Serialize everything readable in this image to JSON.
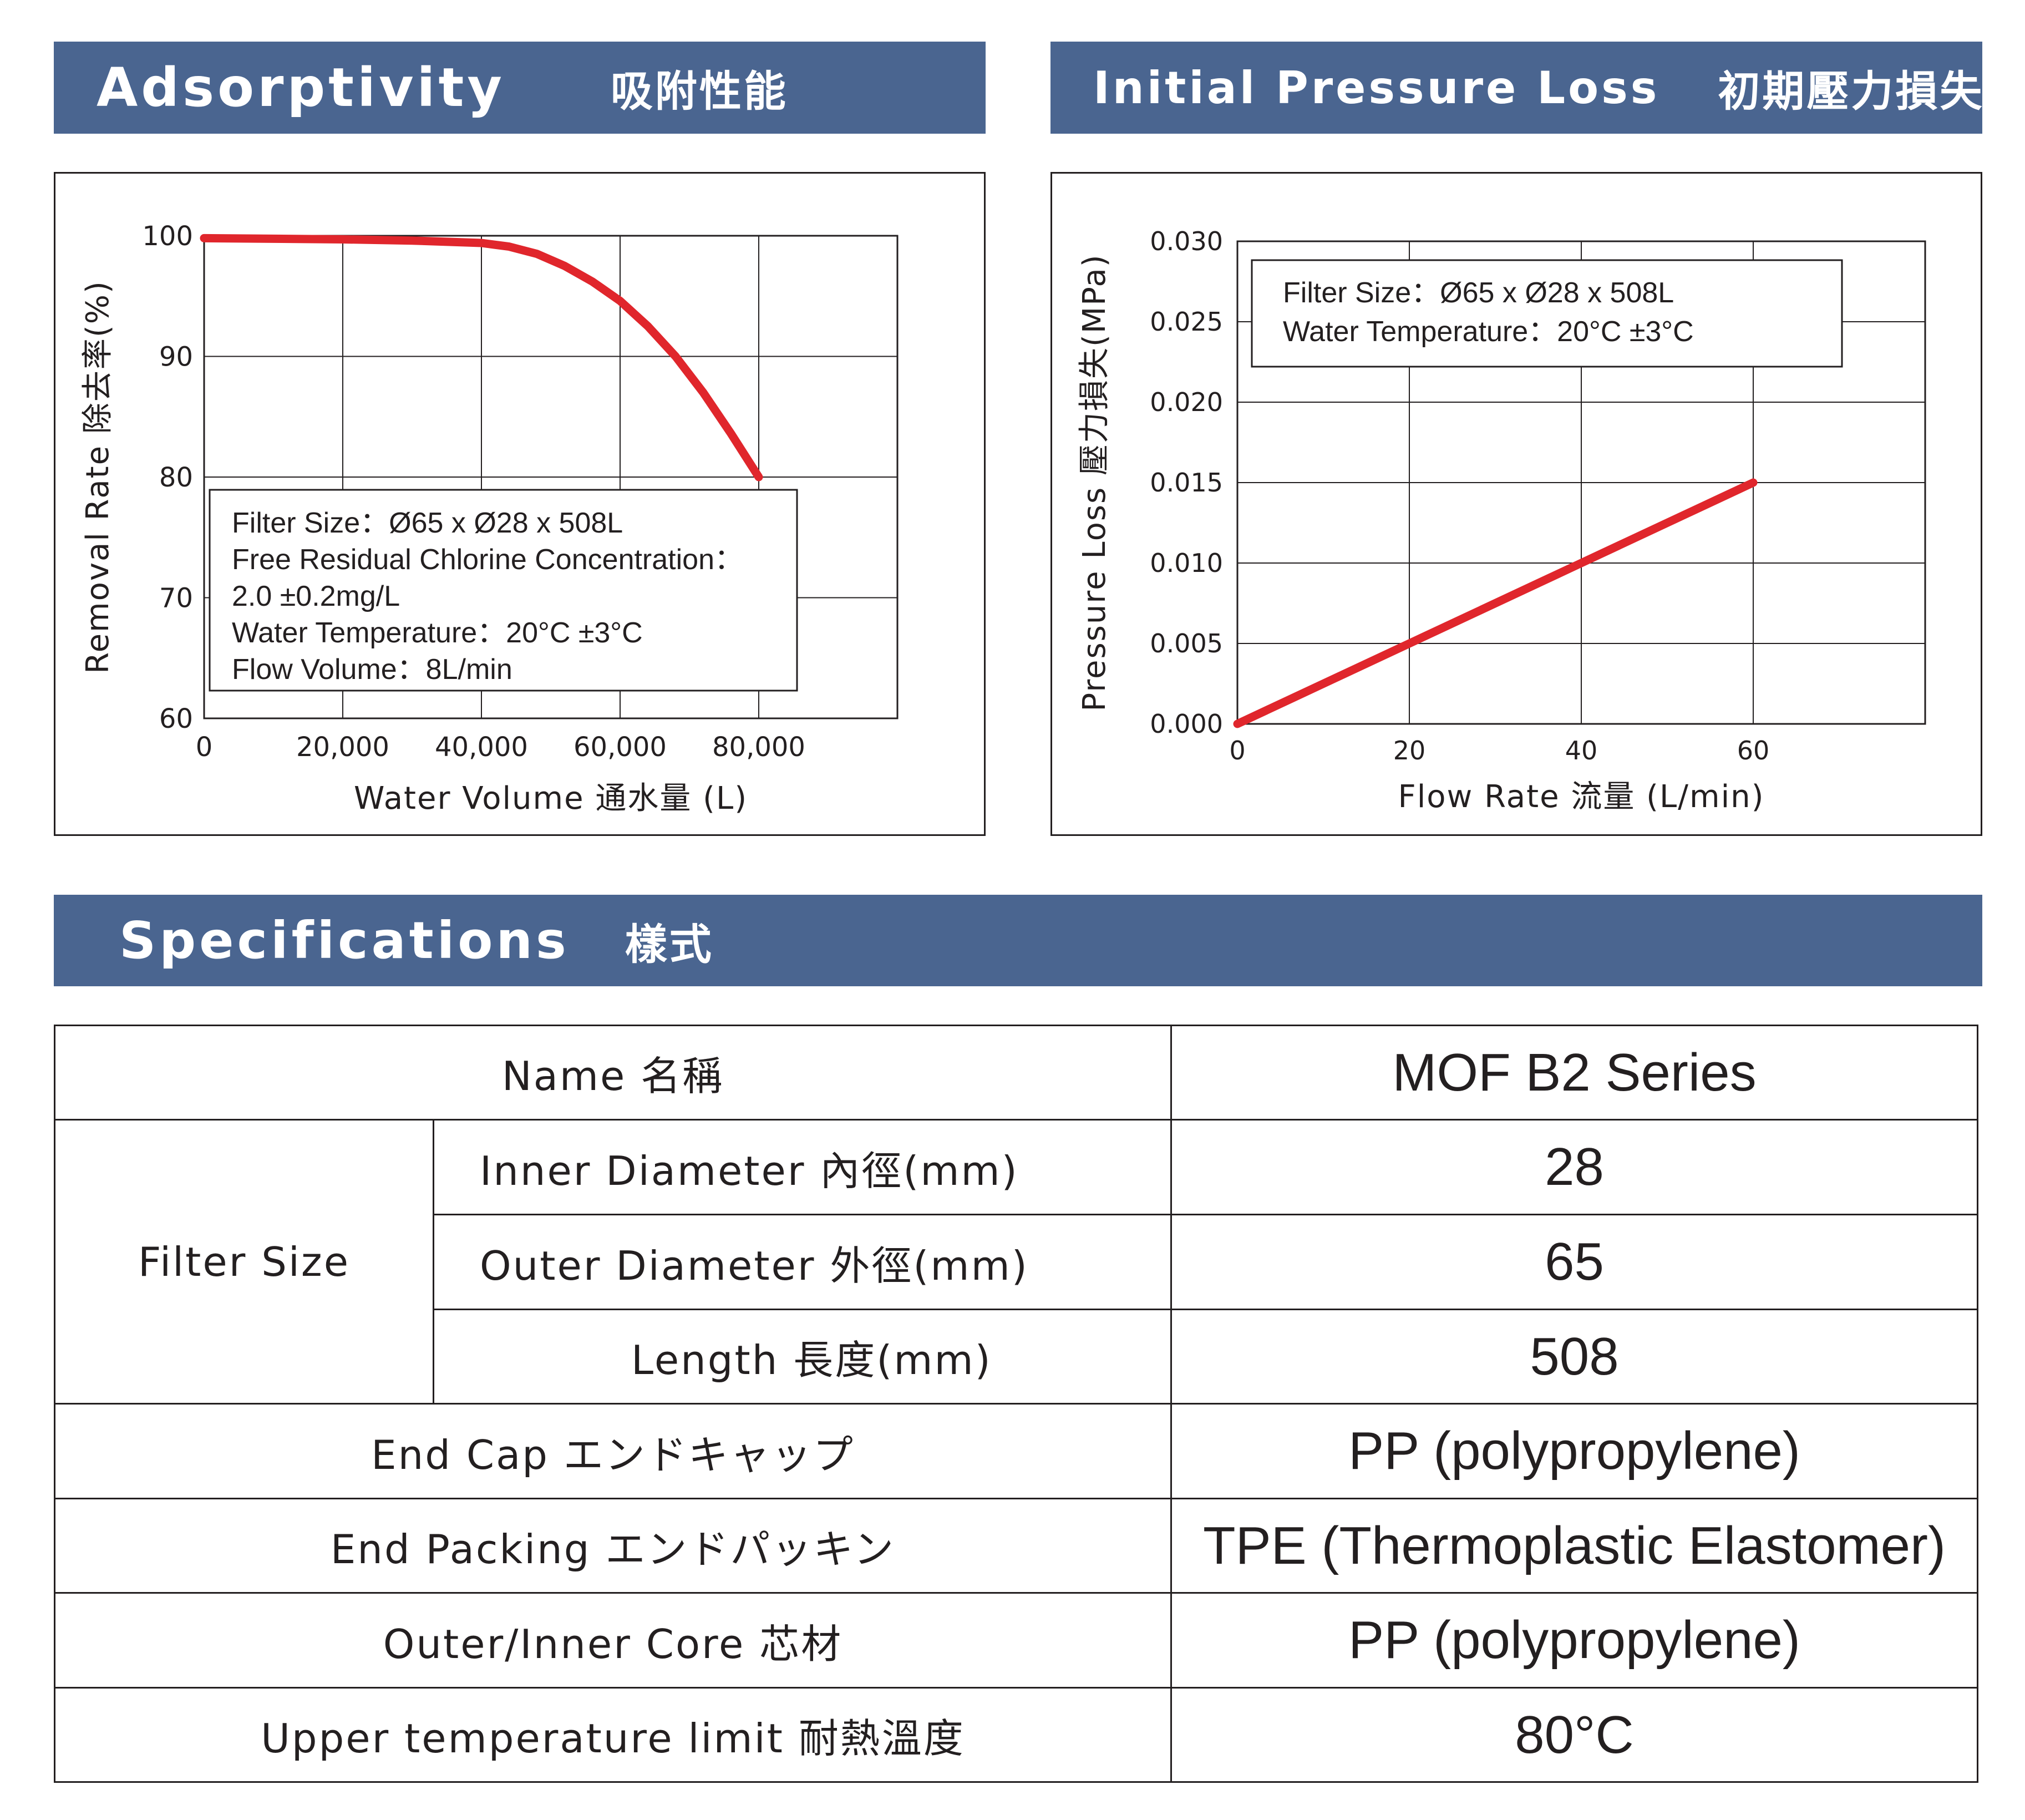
{
  "adsorptivity": {
    "title_en": "Adsorptivity",
    "title_zh": "吸附性能",
    "chart_data": {
      "type": "line",
      "xlabel": "Water Volume 通水量 (L)",
      "ylabel": "Removal Rate 除去率(%)",
      "x_ticks": [
        "0",
        "20,000",
        "40,000",
        "60,000",
        "80,000"
      ],
      "y_ticks": [
        "60",
        "70",
        "80",
        "90",
        "100"
      ],
      "xlim": [
        0,
        100000
      ],
      "ylim": [
        60,
        100
      ],
      "grid": true,
      "series": [
        {
          "color": "#e0262c",
          "x": [
            0,
            10000,
            20000,
            30000,
            40000,
            44000,
            48000,
            52000,
            56000,
            60000,
            64000,
            68000,
            72000,
            76000,
            80000
          ],
          "y": [
            99.8,
            99.75,
            99.7,
            99.6,
            99.4,
            99.1,
            98.5,
            97.5,
            96.2,
            94.6,
            92.5,
            90.0,
            87.0,
            83.6,
            80.0
          ]
        }
      ],
      "annotation": [
        "Filter Size：Ø65 x Ø28 x 508L",
        "Free Residual Chlorine Concentration：",
        "2.0 ±0.2mg/L",
        "Water Temperature：20°C ±3°C",
        "Flow Volume：8L/min"
      ]
    }
  },
  "pressure": {
    "title_en": "Initial Pressure Loss",
    "title_zh": "初期壓力損失",
    "chart_data": {
      "type": "line",
      "xlabel": "Flow Rate 流量 (L/min)",
      "ylabel": "Pressure Loss 壓力損失(MPa)",
      "x_ticks": [
        "0",
        "20",
        "40",
        "60"
      ],
      "y_ticks": [
        "0.000",
        "0.005",
        "0.010",
        "0.015",
        "0.020",
        "0.025",
        "0.030"
      ],
      "xlim": [
        0,
        80
      ],
      "ylim": [
        0,
        0.03
      ],
      "grid": true,
      "series": [
        {
          "color": "#e0262c",
          "x": [
            0,
            20,
            40,
            60
          ],
          "y": [
            0,
            0.005,
            0.01,
            0.015
          ]
        }
      ],
      "annotation": [
        "Filter Size：Ø65 x Ø28 x 508L",
        "Water Temperature：20°C ±3°C"
      ]
    }
  },
  "specs": {
    "title_en": "Specifications",
    "title_zh": "樣式",
    "name_label": "Name 名稱",
    "name_value": "MOF B2 Series",
    "filter_size_label": "Filter Size",
    "inner_label": "Inner Diameter 內徑(mm)",
    "inner_value": "28",
    "outer_label": "Outer Diameter 外徑(mm)",
    "outer_value": "65",
    "length_label": "Length 長度(mm)",
    "length_value": "508",
    "endcap_label": "End Cap エンドキャップ",
    "endcap_value": "PP (polypropylene)",
    "packing_label": "End Packing エンドパッキン",
    "packing_value": "TPE (Thermoplastic Elastomer)",
    "core_label": "Outer/Inner Core 芯材",
    "core_value": "PP (polypropylene)",
    "temp_label": "Upper temperature limit 耐熱溫度",
    "temp_value": "80°C"
  }
}
